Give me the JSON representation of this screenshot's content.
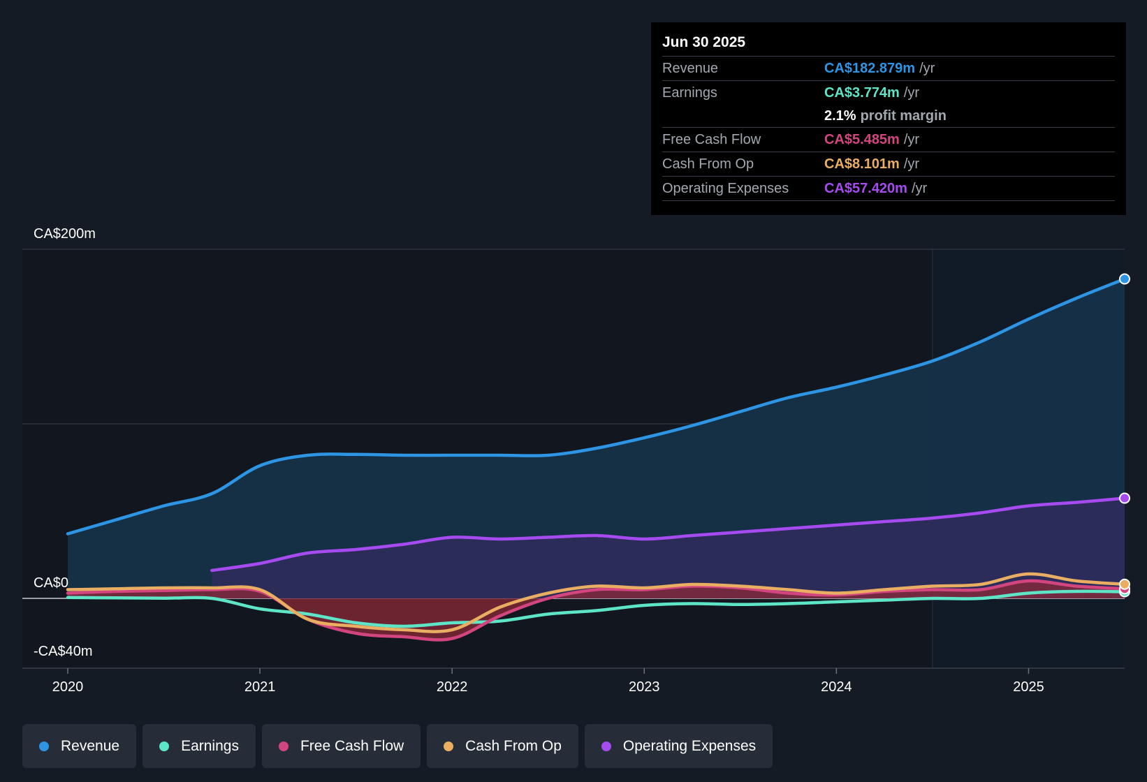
{
  "colors": {
    "revenue": "#2d95e3",
    "earnings": "#5ee5c8",
    "fcf": "#d2457f",
    "cfo": "#eaae63",
    "opex": "#a64bf0",
    "fcf_fill": "#8c2a38"
  },
  "tooltip": {
    "date": "Jun 30 2025",
    "unit": "/yr",
    "rows": [
      {
        "label": "Revenue",
        "value": "CA$182.879m"
      },
      {
        "label": "Earnings",
        "value": "CA$3.774m"
      },
      {
        "margin_value": "2.1%",
        "margin_label": "profit margin"
      },
      {
        "label": "Free Cash Flow",
        "value": "CA$5.485m"
      },
      {
        "label": "Cash From Op",
        "value": "CA$8.101m"
      },
      {
        "label": "Operating Expenses",
        "value": "CA$57.420m"
      }
    ]
  },
  "legend": [
    {
      "label": "Revenue",
      "icon": "revenue-dot-icon"
    },
    {
      "label": "Earnings",
      "icon": "earnings-dot-icon"
    },
    {
      "label": "Free Cash Flow",
      "icon": "fcf-dot-icon"
    },
    {
      "label": "Cash From Op",
      "icon": "cfo-dot-icon"
    },
    {
      "label": "Operating Expenses",
      "icon": "opex-dot-icon"
    }
  ],
  "chart_data": {
    "type": "area",
    "title": "",
    "xlabel": "",
    "ylabel": "",
    "xlim": [
      2020.0,
      2025.5
    ],
    "ylim": [
      -40,
      200
    ],
    "y_tick_labels": [
      {
        "value": 200,
        "label": "CA$200m"
      },
      {
        "value": 0,
        "label": "CA$0"
      },
      {
        "value": -40,
        "label": "-CA$40m"
      }
    ],
    "x_tick_labels": [
      {
        "value": 2020,
        "label": "2020"
      },
      {
        "value": 2021,
        "label": "2021"
      },
      {
        "value": 2022,
        "label": "2022"
      },
      {
        "value": 2023,
        "label": "2023"
      },
      {
        "value": 2024,
        "label": "2024"
      },
      {
        "value": 2025,
        "label": "2025"
      }
    ],
    "gridlines": [
      200,
      100,
      0
    ],
    "forecast_start": 2024.5,
    "series": [
      {
        "name": "Revenue",
        "key": "revenue",
        "points": [
          [
            2020.0,
            37
          ],
          [
            2020.25,
            45
          ],
          [
            2020.5,
            53
          ],
          [
            2020.75,
            60
          ],
          [
            2021.0,
            76
          ],
          [
            2021.25,
            82
          ],
          [
            2021.5,
            82.5
          ],
          [
            2021.75,
            82
          ],
          [
            2022.0,
            82
          ],
          [
            2022.25,
            82
          ],
          [
            2022.5,
            82
          ],
          [
            2022.75,
            86
          ],
          [
            2023.0,
            92
          ],
          [
            2023.25,
            99
          ],
          [
            2023.5,
            107
          ],
          [
            2023.75,
            115
          ],
          [
            2024.0,
            121
          ],
          [
            2024.25,
            128
          ],
          [
            2024.5,
            136
          ],
          [
            2024.75,
            147
          ],
          [
            2025.0,
            160
          ],
          [
            2025.25,
            172
          ],
          [
            2025.5,
            183
          ]
        ]
      },
      {
        "name": "Earnings",
        "key": "earnings",
        "points": [
          [
            2020.0,
            0.5
          ],
          [
            2020.25,
            0.3
          ],
          [
            2020.5,
            0.1
          ],
          [
            2020.75,
            0
          ],
          [
            2021.0,
            -6
          ],
          [
            2021.25,
            -9
          ],
          [
            2021.5,
            -14
          ],
          [
            2021.75,
            -16
          ],
          [
            2022.0,
            -14
          ],
          [
            2022.25,
            -13
          ],
          [
            2022.5,
            -9
          ],
          [
            2022.75,
            -7
          ],
          [
            2023.0,
            -4
          ],
          [
            2023.25,
            -3
          ],
          [
            2023.5,
            -3.5
          ],
          [
            2023.75,
            -3
          ],
          [
            2024.0,
            -2
          ],
          [
            2024.25,
            -1
          ],
          [
            2024.5,
            0
          ],
          [
            2024.75,
            0
          ],
          [
            2025.0,
            3
          ],
          [
            2025.25,
            4
          ],
          [
            2025.5,
            3.8
          ]
        ]
      },
      {
        "name": "Free Cash Flow",
        "key": "fcf",
        "points": [
          [
            2020.0,
            3
          ],
          [
            2020.25,
            4
          ],
          [
            2020.5,
            4.5
          ],
          [
            2020.75,
            5
          ],
          [
            2021.0,
            4
          ],
          [
            2021.25,
            -12
          ],
          [
            2021.5,
            -20
          ],
          [
            2021.75,
            -22
          ],
          [
            2022.0,
            -23
          ],
          [
            2022.25,
            -10
          ],
          [
            2022.5,
            0
          ],
          [
            2022.75,
            5
          ],
          [
            2023.0,
            5
          ],
          [
            2023.25,
            7
          ],
          [
            2023.5,
            6
          ],
          [
            2023.75,
            3
          ],
          [
            2024.0,
            2
          ],
          [
            2024.25,
            4
          ],
          [
            2024.5,
            5
          ],
          [
            2024.75,
            5
          ],
          [
            2025.0,
            10
          ],
          [
            2025.25,
            7
          ],
          [
            2025.5,
            5.5
          ]
        ]
      },
      {
        "name": "Cash From Op",
        "key": "cfo",
        "points": [
          [
            2020.0,
            5
          ],
          [
            2020.25,
            5.5
          ],
          [
            2020.5,
            6
          ],
          [
            2020.75,
            6
          ],
          [
            2021.0,
            5
          ],
          [
            2021.25,
            -12
          ],
          [
            2021.5,
            -16
          ],
          [
            2021.75,
            -18
          ],
          [
            2022.0,
            -18
          ],
          [
            2022.25,
            -5
          ],
          [
            2022.5,
            3
          ],
          [
            2022.75,
            7
          ],
          [
            2023.0,
            6
          ],
          [
            2023.25,
            8
          ],
          [
            2023.5,
            7
          ],
          [
            2023.75,
            5
          ],
          [
            2024.0,
            3
          ],
          [
            2024.25,
            5
          ],
          [
            2024.5,
            7
          ],
          [
            2024.75,
            8
          ],
          [
            2025.0,
            14
          ],
          [
            2025.25,
            10
          ],
          [
            2025.5,
            8.1
          ]
        ]
      },
      {
        "name": "Operating Expenses",
        "key": "opex",
        "points": [
          [
            2020.75,
            16
          ],
          [
            2021.0,
            20
          ],
          [
            2021.25,
            26
          ],
          [
            2021.5,
            28
          ],
          [
            2021.75,
            31
          ],
          [
            2022.0,
            35
          ],
          [
            2022.25,
            34
          ],
          [
            2022.5,
            35
          ],
          [
            2022.75,
            36
          ],
          [
            2023.0,
            34
          ],
          [
            2023.25,
            36
          ],
          [
            2023.5,
            38
          ],
          [
            2023.75,
            40
          ],
          [
            2024.0,
            42
          ],
          [
            2024.25,
            44
          ],
          [
            2024.5,
            46
          ],
          [
            2024.75,
            49
          ],
          [
            2025.0,
            53
          ],
          [
            2025.25,
            55
          ],
          [
            2025.5,
            57.4
          ]
        ]
      }
    ]
  }
}
